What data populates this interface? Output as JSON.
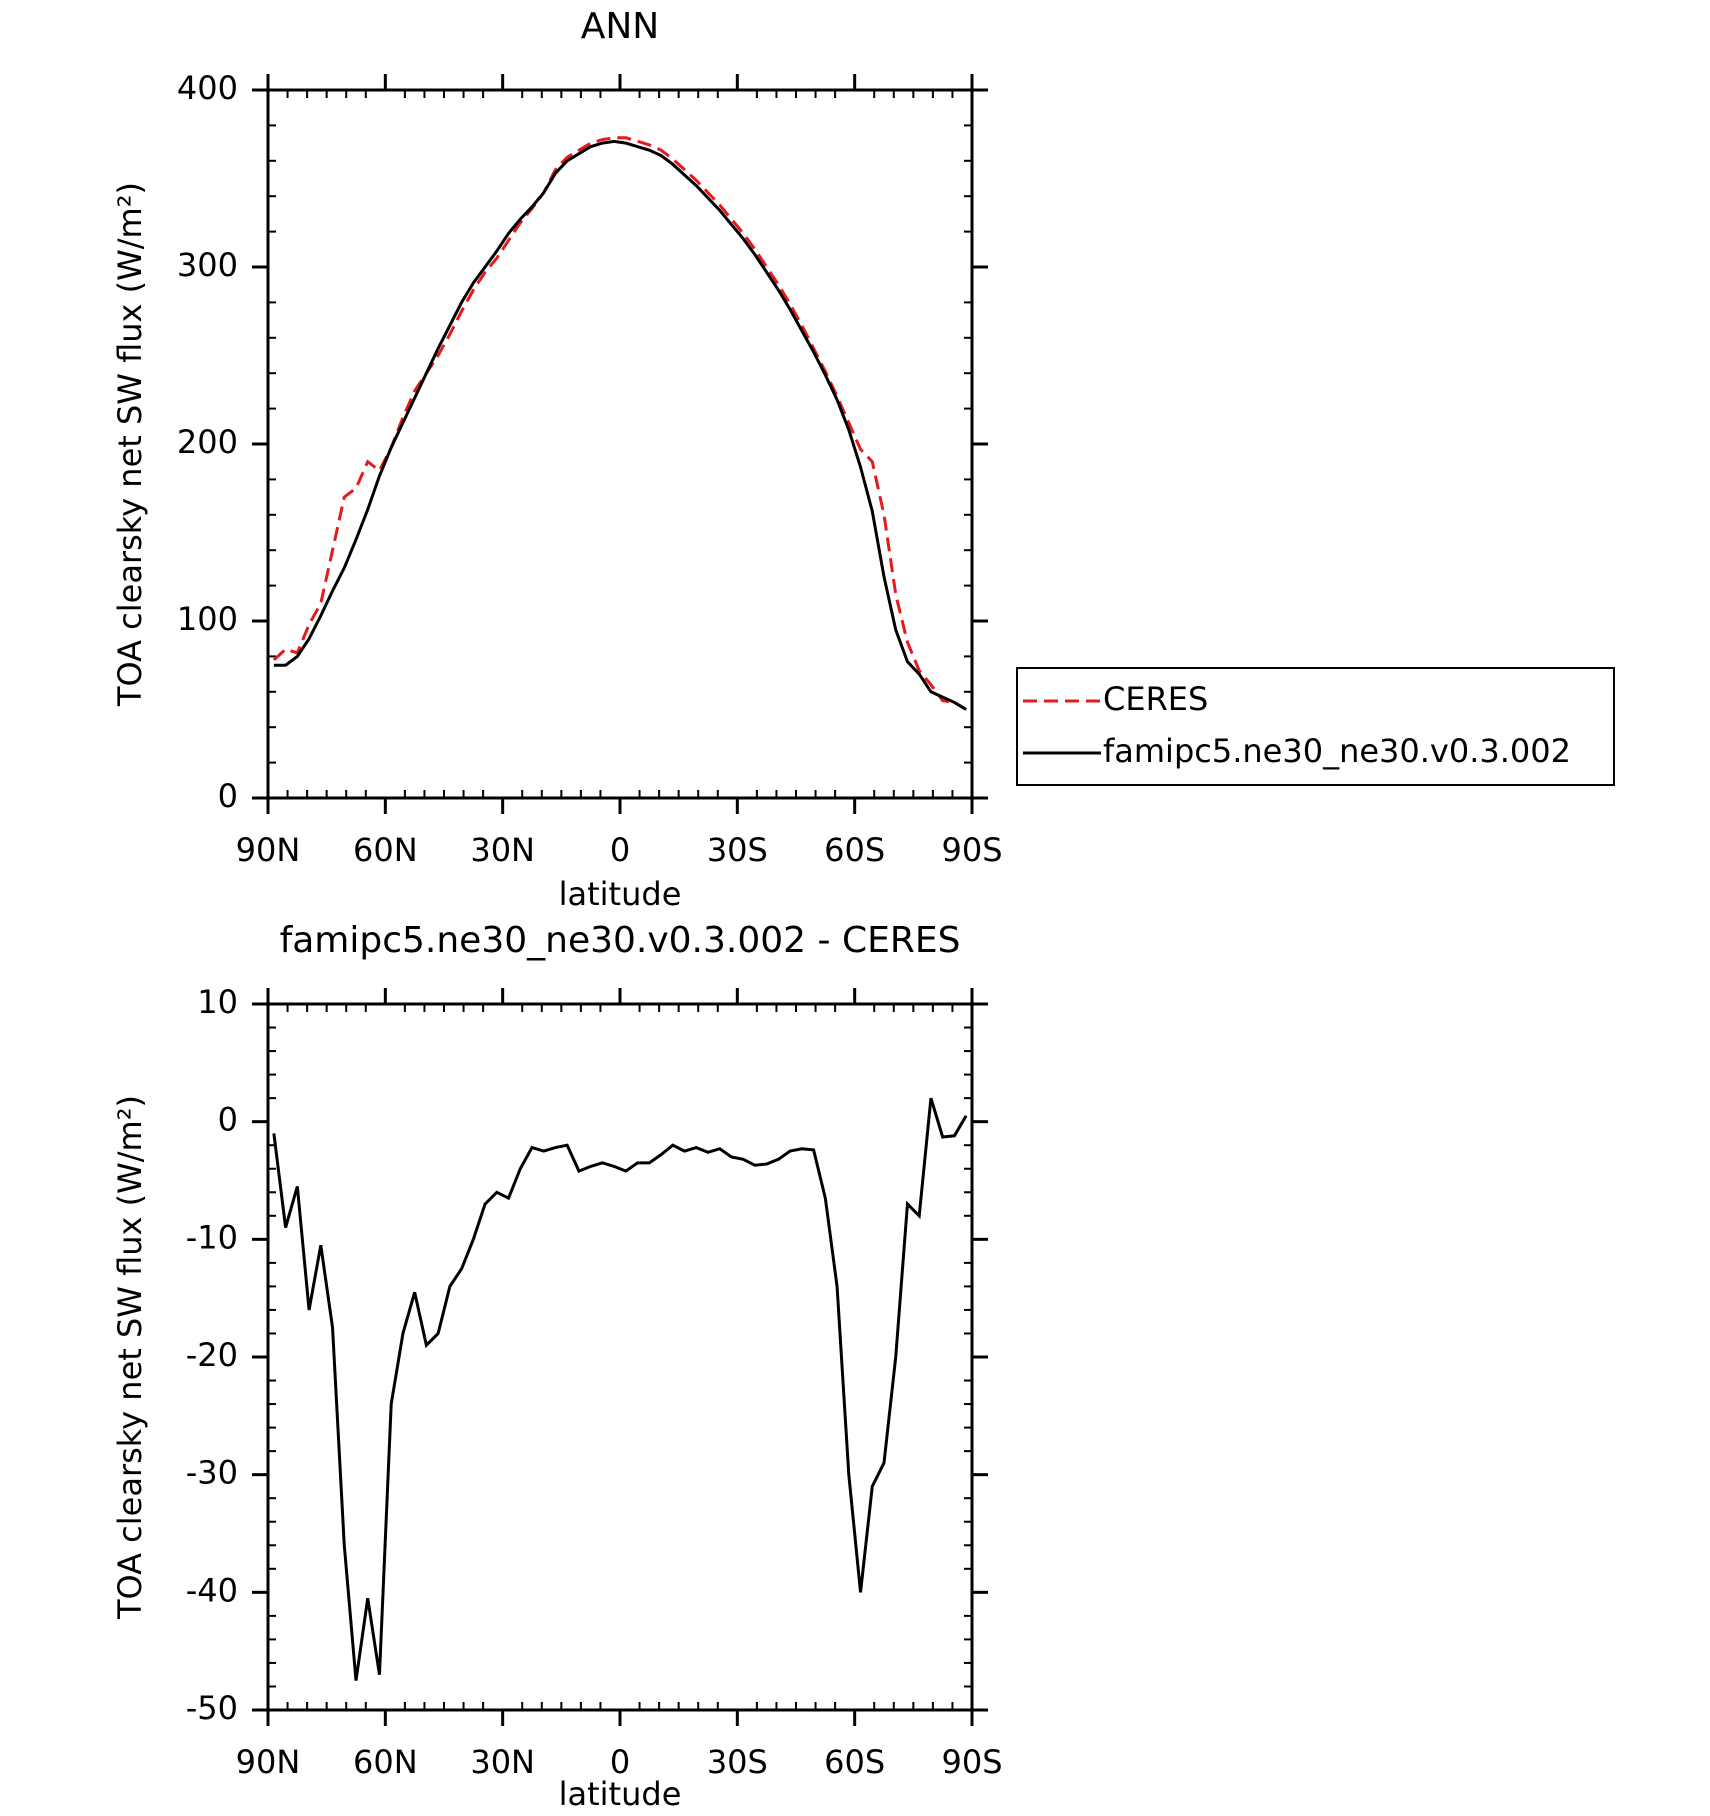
{
  "chart_data": [
    {
      "type": "line",
      "title": "ANN",
      "ylabel": "TOA clearsky net SW flux (W/m²)",
      "xlabel": "latitude",
      "x": [
        88.5,
        85.5,
        82.5,
        79.5,
        76.5,
        73.5,
        70.5,
        67.5,
        64.5,
        61.5,
        58.5,
        55.5,
        52.5,
        49.5,
        46.5,
        43.5,
        40.5,
        37.5,
        34.5,
        31.5,
        28.5,
        25.5,
        22.5,
        19.5,
        16.5,
        13.5,
        10.5,
        7.5,
        4.5,
        1.5,
        -1.5,
        -4.5,
        -7.5,
        -10.5,
        -13.5,
        -16.5,
        -19.5,
        -22.5,
        -25.5,
        -28.5,
        -31.5,
        -34.5,
        -37.5,
        -40.5,
        -43.5,
        -46.5,
        -49.5,
        -52.5,
        -55.5,
        -58.5,
        -61.5,
        -64.5,
        -67.5,
        -70.5,
        -73.5,
        -76.5,
        -79.5,
        -82.5,
        -85.5,
        -88.5
      ],
      "series": [
        {
          "name": "CERES",
          "color": "#e41a1c",
          "linestyle": "dashed",
          "values": [
            78,
            84,
            82,
            98,
            110,
            140,
            170,
            175,
            190,
            185,
            198,
            215,
            230,
            240,
            250,
            262,
            275,
            287,
            297,
            305,
            315,
            325,
            333,
            342,
            355,
            362,
            366,
            370,
            372,
            373,
            373,
            371,
            369,
            366,
            361,
            355,
            349,
            342,
            335,
            327,
            319,
            310,
            300,
            290,
            279,
            267,
            254,
            241,
            227,
            212,
            197,
            190,
            160,
            115,
            88,
            72,
            64,
            55,
            54,
            50
          ]
        },
        {
          "name": "famipc5.ne30_ne30.v0.3.002",
          "color": "#000000",
          "linestyle": "solid",
          "values": [
            75,
            75,
            80,
            90,
            103,
            117,
            130,
            146,
            163,
            182,
            198,
            212,
            226,
            240,
            254,
            267,
            280,
            291,
            300,
            309,
            319,
            327,
            334,
            342,
            353,
            360,
            364,
            368,
            370,
            371,
            370,
            368,
            366,
            363,
            358,
            352,
            346,
            339,
            332,
            324,
            316,
            307,
            297,
            287,
            276,
            264,
            252,
            239,
            225,
            208,
            187,
            162,
            125,
            95,
            77,
            70,
            60,
            57,
            54,
            50
          ]
        }
      ],
      "xlim": [
        90,
        -90
      ],
      "xticks": [
        {
          "value": 90,
          "label": "90N"
        },
        {
          "value": 60,
          "label": "60N"
        },
        {
          "value": 30,
          "label": "30N"
        },
        0,
        {
          "value": -30,
          "label": "30S"
        },
        {
          "value": -60,
          "label": "60S"
        },
        {
          "value": -90,
          "label": "90S"
        }
      ],
      "ylim": [
        0,
        400
      ],
      "yticks": [
        0,
        100,
        200,
        300,
        400
      ],
      "legend": "right"
    },
    {
      "type": "line",
      "title": "famipc5.ne30_ne30.v0.3.002 - CERES",
      "ylabel": "TOA clearsky net SW flux (W/m²)",
      "xlabel": "latitude",
      "x": [
        88.5,
        85.5,
        82.5,
        79.5,
        76.5,
        73.5,
        70.5,
        67.5,
        64.5,
        61.5,
        58.5,
        55.5,
        52.5,
        49.5,
        46.5,
        43.5,
        40.5,
        37.5,
        34.5,
        31.5,
        28.5,
        25.5,
        22.5,
        19.5,
        16.5,
        13.5,
        10.5,
        7.5,
        4.5,
        1.5,
        -1.5,
        -4.5,
        -7.5,
        -10.5,
        -13.5,
        -16.5,
        -19.5,
        -22.5,
        -25.5,
        -28.5,
        -31.5,
        -34.5,
        -37.5,
        -40.5,
        -43.5,
        -46.5,
        -49.5,
        -52.5,
        -55.5,
        -58.5,
        -61.5,
        -64.5,
        -67.5,
        -70.5,
        -73.5,
        -76.5,
        -79.5,
        -82.5,
        -85.5,
        -88.5
      ],
      "series": [
        {
          "color": "#000000",
          "linestyle": "solid",
          "values": [
            -1,
            -9,
            -5.5,
            -16,
            -10.5,
            -17.5,
            -36,
            -47.5,
            -40.5,
            -47,
            -24,
            -18,
            -14.5,
            -19,
            -18,
            -14,
            -12.5,
            -10,
            -7,
            -6,
            -6.5,
            -4,
            -2.2,
            -2.5,
            -2.2,
            -2,
            -4.2,
            -3.8,
            -3.5,
            -3.8,
            -4.2,
            -3.5,
            -3.5,
            -2.8,
            -2,
            -2.5,
            -2.2,
            -2.6,
            -2.3,
            -3,
            -3.2,
            -3.7,
            -3.6,
            -3.2,
            -2.5,
            -2.3,
            -2.4,
            -6.5,
            -14,
            -30,
            -40,
            -31,
            -29,
            -20,
            -7,
            -8,
            2,
            -1.3,
            -1.2,
            0.5
          ]
        }
      ],
      "xlim": [
        90,
        -90
      ],
      "xticks": [
        {
          "value": 90,
          "label": "90N"
        },
        {
          "value": 60,
          "label": "60N"
        },
        {
          "value": 30,
          "label": "30N"
        },
        0,
        {
          "value": -30,
          "label": "30S"
        },
        {
          "value": -60,
          "label": "60S"
        },
        {
          "value": -90,
          "label": "90S"
        }
      ],
      "ylim": [
        -50,
        10
      ],
      "yticks": [
        -50,
        -40,
        -30,
        -20,
        -10,
        0,
        10
      ]
    }
  ]
}
